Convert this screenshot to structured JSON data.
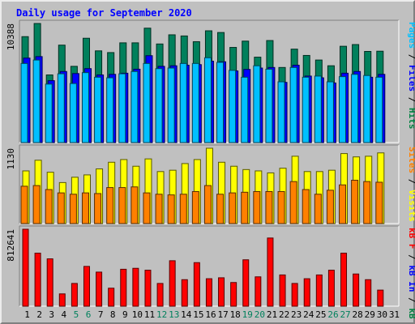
{
  "chart_data": {
    "type": "bar",
    "title": "Daily usage for September 2020",
    "categories": [
      "1",
      "2",
      "3",
      "4",
      "5",
      "6",
      "7",
      "8",
      "9",
      "10",
      "11",
      "12",
      "13",
      "14",
      "15",
      "16",
      "17",
      "18",
      "19",
      "20",
      "21",
      "22",
      "23",
      "24",
      "25",
      "26",
      "27",
      "28",
      "29",
      "30",
      "31"
    ],
    "weekend_days": [
      "5",
      "6",
      "12",
      "13",
      "19",
      "20",
      "26",
      "27"
    ],
    "panels": [
      {
        "name": "hits-files-pages",
        "ymax_label": "10388",
        "ymax": 10388,
        "axis_legend": [
          {
            "text": "Pages",
            "color": "#00c0ff"
          },
          {
            "text": " / ",
            "color": "#000000"
          },
          {
            "text": "Files",
            "color": "#0000ff"
          },
          {
            "text": " / ",
            "color": "#000000"
          },
          {
            "text": "Hits",
            "color": "#008040"
          }
        ],
        "series": [
          {
            "name": "Hits",
            "color": "#00805c",
            "values": [
              9240,
              10388,
              5900,
              8500,
              6650,
              9100,
              8000,
              7850,
              8700,
              8700,
              9980,
              8600,
              9400,
              9300,
              8800,
              9750,
              9600,
              8300,
              8850,
              7450,
              8900,
              6550,
              8150,
              7600,
              7200,
              6700,
              8400,
              8550,
              7950,
              7970,
              null
            ]
          },
          {
            "name": "Files",
            "color": "#0000ff",
            "values": [
              7370,
              7500,
              5400,
              6200,
              6020,
              6450,
              5900,
              5950,
              6050,
              6400,
              7580,
              6650,
              6700,
              6750,
              6800,
              7100,
              7050,
              6250,
              6380,
              6500,
              6550,
              5250,
              6750,
              5800,
              5650,
              5200,
              6050,
              6200,
              5700,
              5950,
              null
            ]
          },
          {
            "name": "Pages",
            "color": "#00c0ff",
            "values": [
              6900,
              7200,
              5100,
              6000,
              5150,
              6100,
              5700,
              5650,
              6000,
              6200,
              6900,
              6450,
              6500,
              6900,
              6900,
              7400,
              7000,
              6300,
              5700,
              6700,
              6400,
              5300,
              6550,
              5700,
              5800,
              5300,
              5750,
              5950,
              5850,
              5700,
              null
            ]
          }
        ]
      },
      {
        "name": "visits-sites",
        "ymax_label": "1130",
        "ymax": 1130,
        "axis_legend": [
          {
            "text": "Sites",
            "color": "#ff8000"
          },
          {
            "text": " / ",
            "color": "#000000"
          },
          {
            "text": "Visits",
            "color": "#ffff00"
          }
        ],
        "series": [
          {
            "name": "Visits",
            "color": "#ffff00",
            "values": [
              790,
              950,
              770,
              615,
              695,
              730,
              820,
              920,
              960,
              860,
              970,
              780,
              800,
              900,
              960,
              1130,
              920,
              860,
              810,
              790,
              760,
              830,
              1010,
              780,
              780,
              800,
              1050,
              1000,
              1010,
              1060,
              null
            ]
          },
          {
            "name": "Sites",
            "color": "#ff8000",
            "values": [
              560,
              570,
              510,
              460,
              440,
              460,
              450,
              540,
              540,
              550,
              460,
              440,
              430,
              440,
              480,
              570,
              440,
              460,
              470,
              480,
              480,
              480,
              630,
              510,
              440,
              500,
              580,
              650,
              630,
              620,
              null
            ]
          }
        ]
      },
      {
        "name": "kbytes",
        "ymax_label": "812641",
        "ymax": 812641,
        "axis_legend": [
          {
            "text": "kB F",
            "color": "#ff0000"
          },
          {
            "text": " / ",
            "color": "#000000"
          },
          {
            "text": "kB In",
            "color": "#0000ff"
          },
          {
            "text": " / ",
            "color": "#000000"
          },
          {
            "text": "kB Out",
            "color": "#008040"
          }
        ],
        "series": [
          {
            "name": "kB F",
            "color": "#ff0000",
            "values": [
              812641,
              560000,
              500000,
              130000,
              240000,
              420000,
              360000,
              190000,
              390000,
              400000,
              380000,
              240000,
              480000,
              280000,
              460000,
              290000,
              300000,
              250000,
              490000,
              310000,
              720000,
              330000,
              240000,
              290000,
              330000,
              380000,
              560000,
              340000,
              280000,
              170000,
              null
            ]
          }
        ]
      }
    ]
  }
}
